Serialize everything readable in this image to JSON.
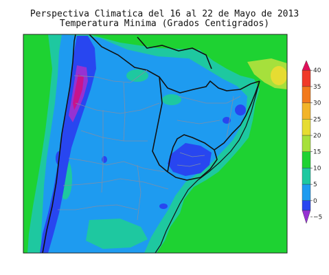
{
  "title_line1": "Perspectiva Climatica del 16 al 22 de Mayo de 2013",
  "title_line2": "Temperatura Minima (Grados Centigrados)",
  "legend": {
    "ticks": [
      {
        "value": 40,
        "label": "40"
      },
      {
        "value": 35,
        "label": "35"
      },
      {
        "value": 30,
        "label": "30"
      },
      {
        "value": 25,
        "label": "25"
      },
      {
        "value": 20,
        "label": "20"
      },
      {
        "value": 15,
        "label": "15"
      },
      {
        "value": 10,
        "label": "10"
      },
      {
        "value": 5,
        "label": "5"
      },
      {
        "value": 0,
        "label": "0"
      },
      {
        "value": -5,
        "label": "−5"
      }
    ],
    "bands": [
      {
        "from": 40,
        "to": 43,
        "color": "#e0105a"
      },
      {
        "from": 35,
        "to": 40,
        "color": "#f03a28"
      },
      {
        "from": 30,
        "to": 35,
        "color": "#f27a1c"
      },
      {
        "from": 25,
        "to": 30,
        "color": "#f2b428"
      },
      {
        "from": 20,
        "to": 25,
        "color": "#e6dc32"
      },
      {
        "from": 15,
        "to": 20,
        "color": "#a6e03c"
      },
      {
        "from": 10,
        "to": 15,
        "color": "#1ed232"
      },
      {
        "from": 5,
        "to": 10,
        "color": "#1ec8a0"
      },
      {
        "from": 0,
        "to": 5,
        "color": "#1e9bf0"
      },
      {
        "from": -3,
        "to": 0,
        "color": "#2846f0"
      },
      {
        "from": -7,
        "to": -3,
        "color": "#9632d2"
      }
    ]
  },
  "colors": {
    "green": "#1ed232",
    "cyan": "#1ec8a0",
    "blue": "#1e9bf0",
    "darkblue": "#2846f0",
    "purple": "#9632d2",
    "magenta": "#c8148c",
    "yellowgreen": "#a6e03c",
    "yellow": "#e6dc32"
  }
}
